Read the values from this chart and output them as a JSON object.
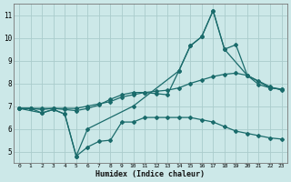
{
  "xlabel": "Humidex (Indice chaleur)",
  "background_color": "#cce8e8",
  "grid_color": "#aacccc",
  "line_color": "#1a6b6b",
  "xlim": [
    -0.5,
    23.5
  ],
  "ylim": [
    4.5,
    11.5
  ],
  "xticks": [
    0,
    1,
    2,
    3,
    4,
    5,
    6,
    7,
    8,
    9,
    10,
    11,
    12,
    13,
    14,
    15,
    16,
    17,
    18,
    19,
    20,
    21,
    22,
    23
  ],
  "yticks": [
    5,
    6,
    7,
    8,
    9,
    10,
    11
  ],
  "lines": [
    {
      "x": [
        0,
        1,
        2,
        3,
        4,
        5,
        6,
        7,
        8,
        9,
        10,
        11,
        12,
        13,
        14,
        15,
        16,
        17,
        18,
        19,
        20,
        21,
        22,
        23
      ],
      "y": [
        6.9,
        6.9,
        6.7,
        6.85,
        6.65,
        4.8,
        5.2,
        5.45,
        5.5,
        6.3,
        6.3,
        6.5,
        6.5,
        6.5,
        6.5,
        6.5,
        6.4,
        6.3,
        6.1,
        5.9,
        5.8,
        5.7,
        5.6,
        5.55
      ]
    },
    {
      "x": [
        0,
        1,
        2,
        3,
        4,
        5,
        6,
        7,
        8,
        9,
        10,
        11,
        12,
        13,
        14,
        15,
        16,
        17,
        18,
        19,
        20,
        21,
        22,
        23
      ],
      "y": [
        6.9,
        6.9,
        6.9,
        6.9,
        6.9,
        6.9,
        7.0,
        7.1,
        7.2,
        7.4,
        7.5,
        7.6,
        7.65,
        7.7,
        7.8,
        8.0,
        8.15,
        8.3,
        8.4,
        8.45,
        8.35,
        8.1,
        7.85,
        7.7
      ]
    },
    {
      "x": [
        0,
        1,
        2,
        3,
        4,
        5,
        6,
        7,
        8,
        9,
        10,
        11,
        12,
        13,
        14,
        15,
        16,
        17,
        18,
        19,
        20,
        21,
        22,
        23
      ],
      "y": [
        6.9,
        6.9,
        6.85,
        6.9,
        6.85,
        6.8,
        6.9,
        7.05,
        7.3,
        7.5,
        7.6,
        7.6,
        7.55,
        7.5,
        8.55,
        9.65,
        10.05,
        11.2,
        9.5,
        9.7,
        8.35,
        7.95,
        7.8,
        7.75
      ]
    },
    {
      "x": [
        0,
        2,
        3,
        4,
        5,
        6,
        10,
        14,
        15,
        16,
        17,
        18,
        20,
        22,
        23
      ],
      "y": [
        6.9,
        6.7,
        6.85,
        6.65,
        4.8,
        6.0,
        7.0,
        8.55,
        9.65,
        10.05,
        11.2,
        9.5,
        8.35,
        7.8,
        7.75
      ]
    }
  ]
}
